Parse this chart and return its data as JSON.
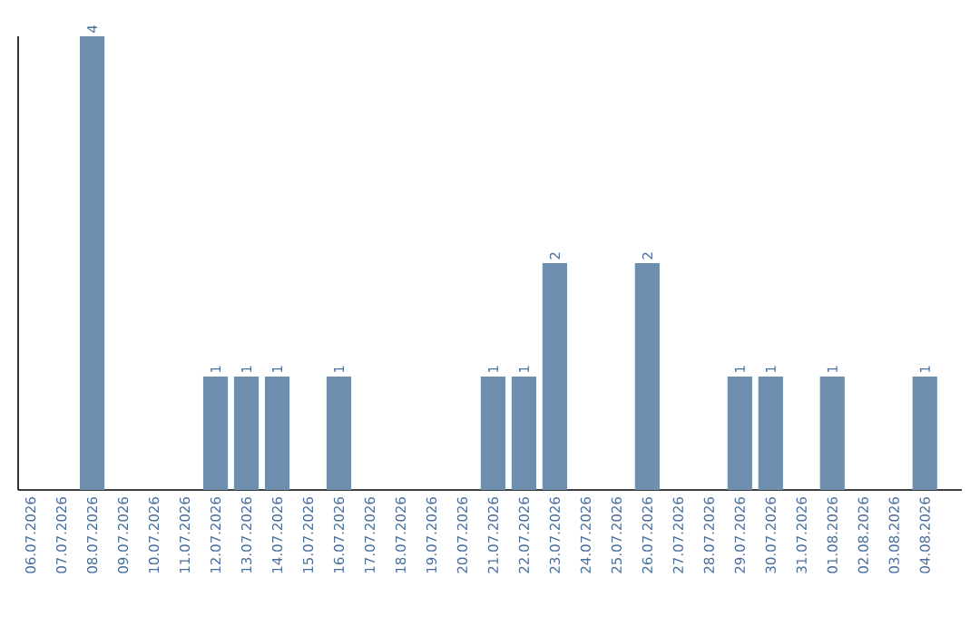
{
  "chart_data": {
    "type": "bar",
    "categories": [
      "06.07.2026",
      "07.07.2026",
      "08.07.2026",
      "09.07.2026",
      "10.07.2026",
      "11.07.2026",
      "12.07.2026",
      "13.07.2026",
      "14.07.2026",
      "15.07.2026",
      "16.07.2026",
      "17.07.2026",
      "18.07.2026",
      "19.07.2026",
      "20.07.2026",
      "21.07.2026",
      "22.07.2026",
      "23.07.2026",
      "24.07.2026",
      "25.07.2026",
      "26.07.2026",
      "27.07.2026",
      "28.07.2026",
      "29.07.2026",
      "30.07.2026",
      "31.07.2026",
      "01.08.2026",
      "02.08.2026",
      "03.08.2026",
      "04.08.2026"
    ],
    "values": [
      0,
      0,
      4,
      0,
      0,
      0,
      1,
      1,
      1,
      0,
      1,
      0,
      0,
      0,
      0,
      1,
      1,
      2,
      0,
      0,
      2,
      0,
      0,
      1,
      1,
      0,
      1,
      0,
      0,
      1
    ],
    "value_labels": [
      null,
      null,
      "4",
      null,
      null,
      null,
      "1",
      "1",
      "1",
      null,
      "1",
      null,
      null,
      null,
      null,
      "1",
      "1",
      "2",
      null,
      null,
      "2",
      null,
      null,
      "1",
      "1",
      null,
      "1",
      null,
      null,
      "1"
    ],
    "color": "#6d8eac",
    "ylim": [
      0,
      4
    ],
    "tick_labels": "x",
    "grid": false
  }
}
